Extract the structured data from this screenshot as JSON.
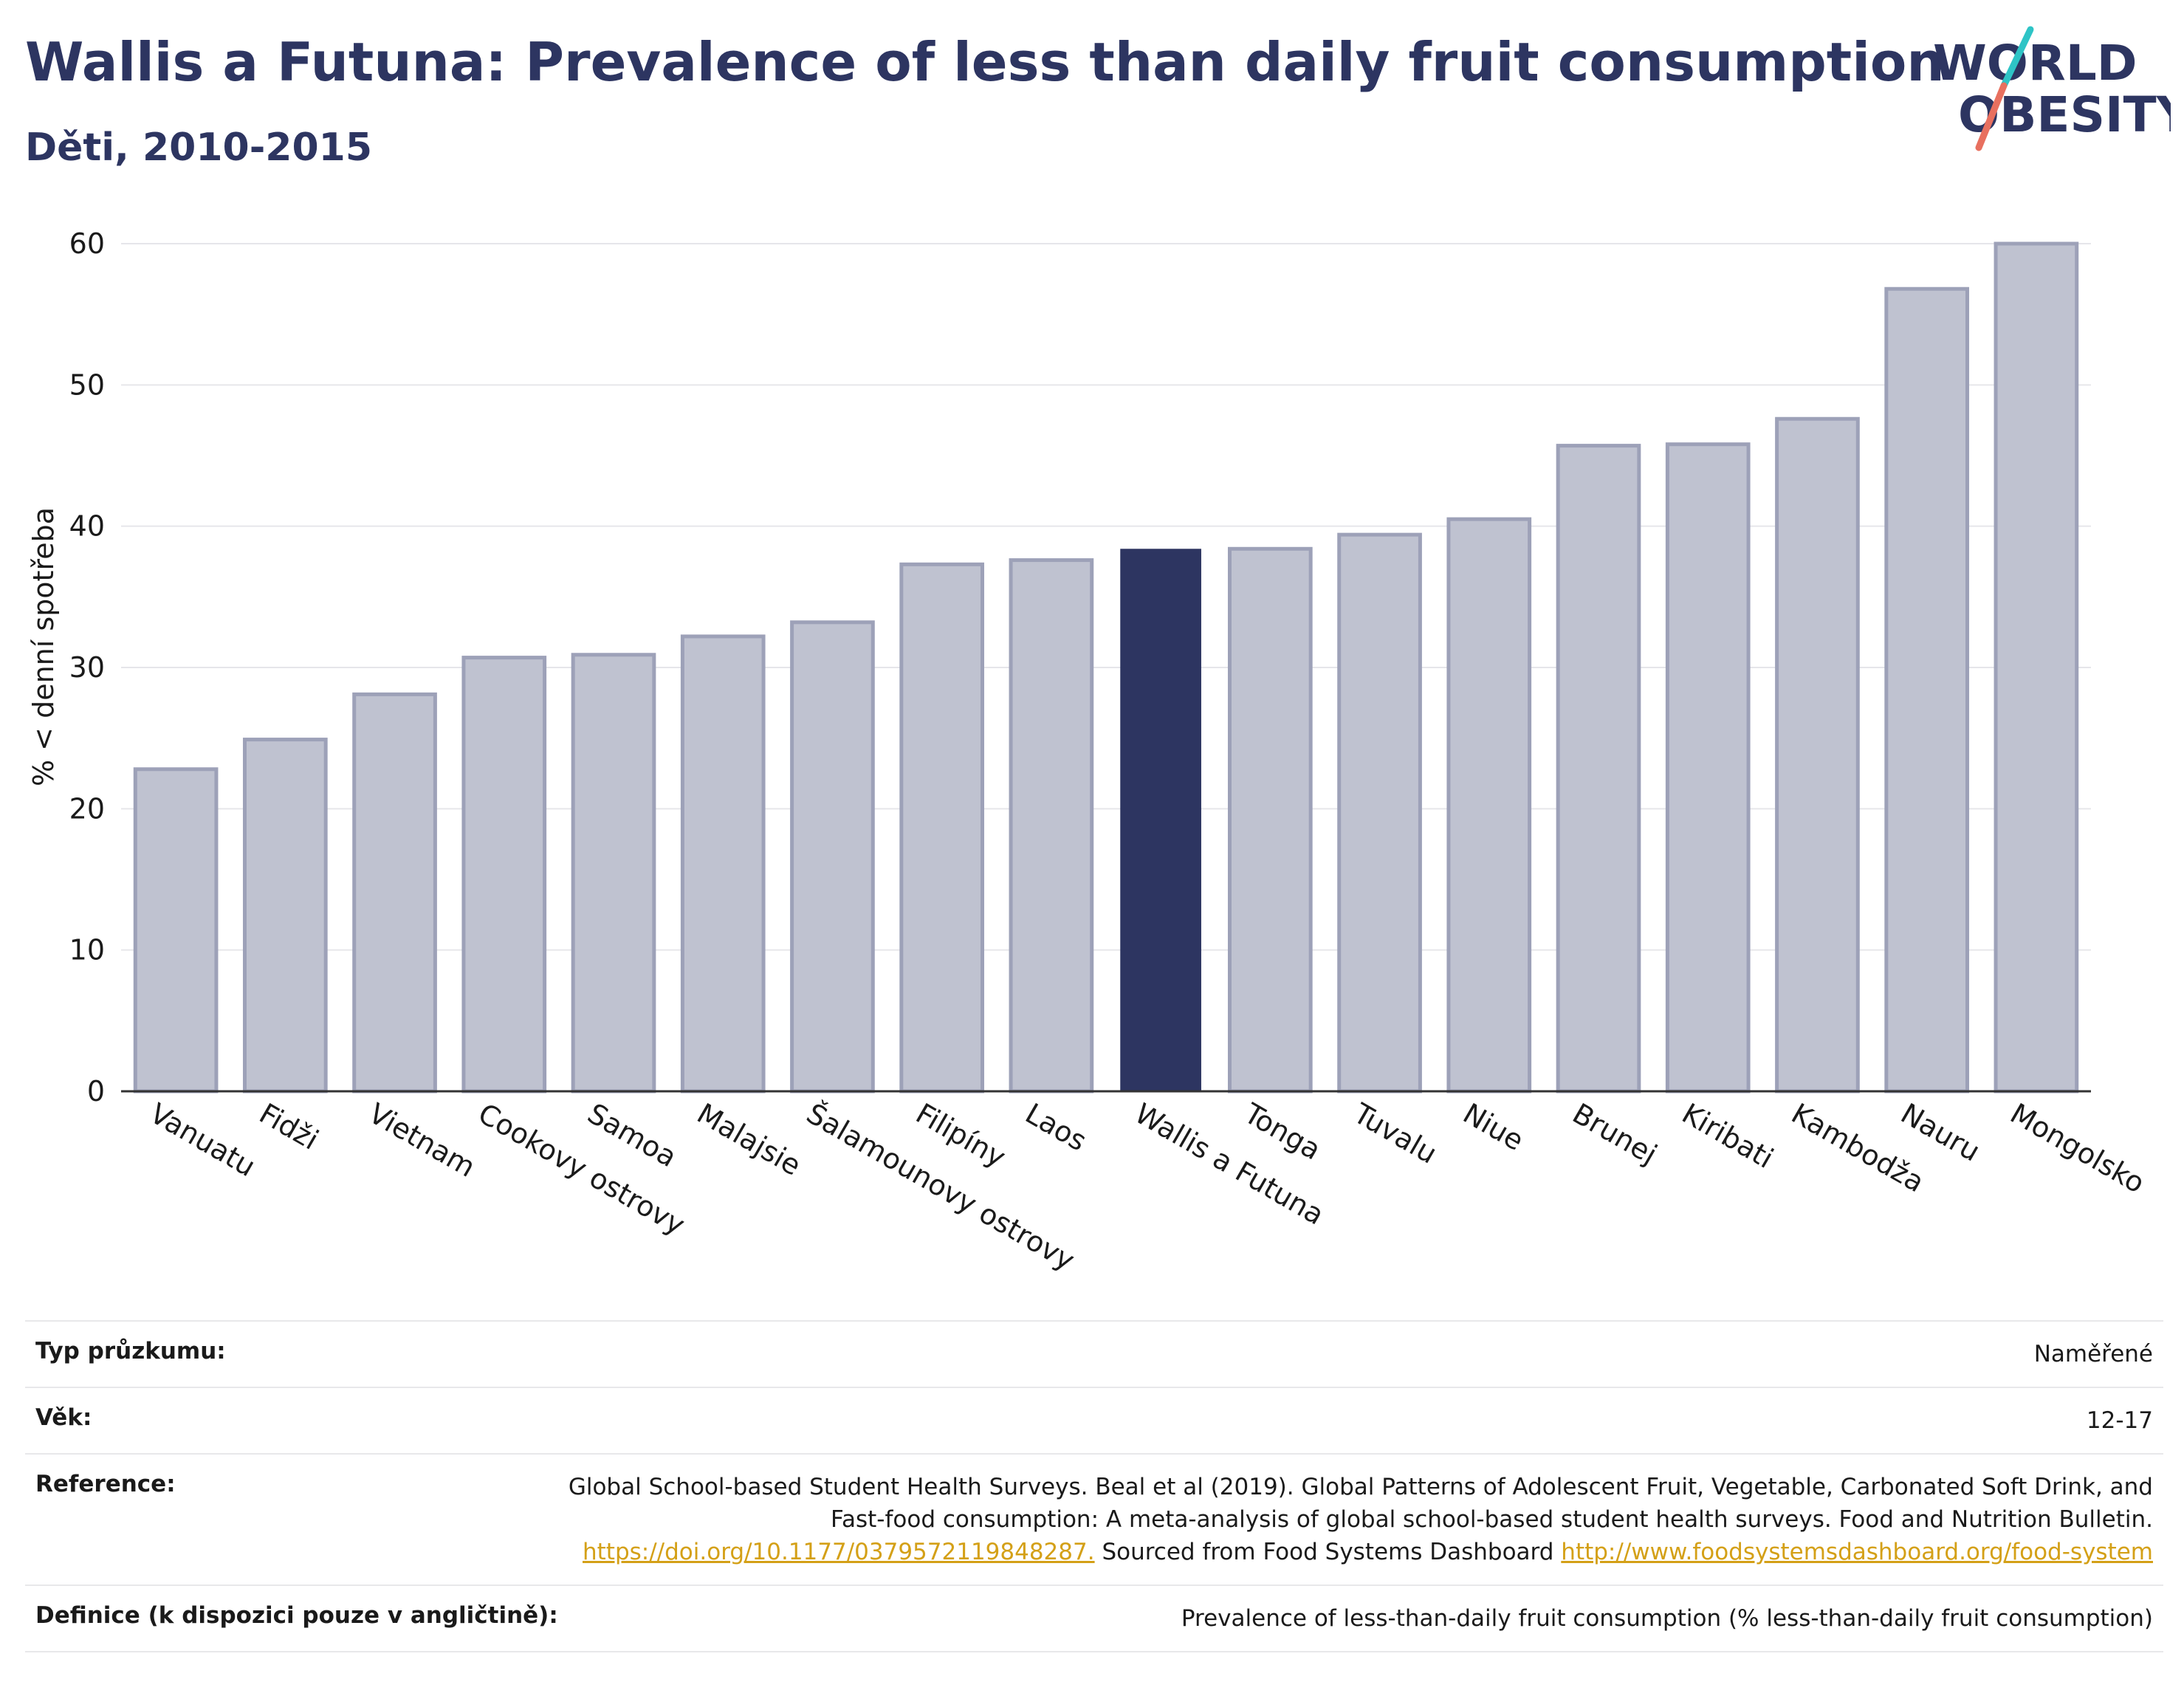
{
  "header": {
    "title": "Wallis a Futuna: Prevalence of less than daily fruit consumption",
    "subtitle": "Děti, 2010-2015"
  },
  "logo": {
    "line1": "WORLD",
    "line2": "OBESITY",
    "accent_colors": [
      "#2ec4c6",
      "#e8705f"
    ]
  },
  "chart_data": {
    "type": "bar",
    "ylabel": "% < denní spotřeba",
    "xlabel": "",
    "ylim": [
      0,
      60
    ],
    "yticks": [
      0,
      10,
      20,
      30,
      40,
      50,
      60
    ],
    "grid": true,
    "categories": [
      "Vanuatu",
      "Fidži",
      "Vietnam",
      "Cookovy ostrovy",
      "Samoa",
      "Malajsie",
      "Šalamounovy ostrovy",
      "Filipíny",
      "Laos",
      "Wallis a Futuna",
      "Tonga",
      "Tuvalu",
      "Niue",
      "Brunej",
      "Kiribati",
      "Kambodža",
      "Nauru",
      "Mongolsko"
    ],
    "values": [
      22.8,
      24.9,
      28.1,
      30.7,
      30.9,
      32.2,
      33.2,
      37.3,
      37.6,
      38.4,
      38.4,
      39.4,
      40.5,
      45.7,
      45.8,
      47.6,
      56.8,
      60.0
    ],
    "highlight": "Wallis a Futuna",
    "colors": {
      "bar": "#bfc2d0",
      "bar_border": "#9da1b8",
      "highlight": "#2d3561",
      "grid": "#e6e6ea",
      "axis": "#333333"
    }
  },
  "meta": {
    "survey_type_label": "Typ průzkumu:",
    "survey_type_value": "Naměřené",
    "age_label": "Věk:",
    "age_value": "12-17",
    "reference_label": "Reference:",
    "reference_text1": "Global School-based Student Health Surveys. Beal et al (2019). Global Patterns of Adolescent Fruit, Vegetable, Carbonated Soft Drink, and Fast-food consumption: A meta-analysis of global school-based student health surveys. Food and Nutrition Bulletin.",
    "reference_link1": "https://doi.org/10.1177/0379572119848287.",
    "reference_text2": "Sourced from Food Systems Dashboard",
    "reference_link2": "http://www.foodsystemsdashboard.org/food-system",
    "definition_label": "Definice (k dispozici pouze v angličtině):",
    "definition_value": "Prevalence of less-than-daily fruit consumption (% less-than-daily fruit consumption)"
  }
}
